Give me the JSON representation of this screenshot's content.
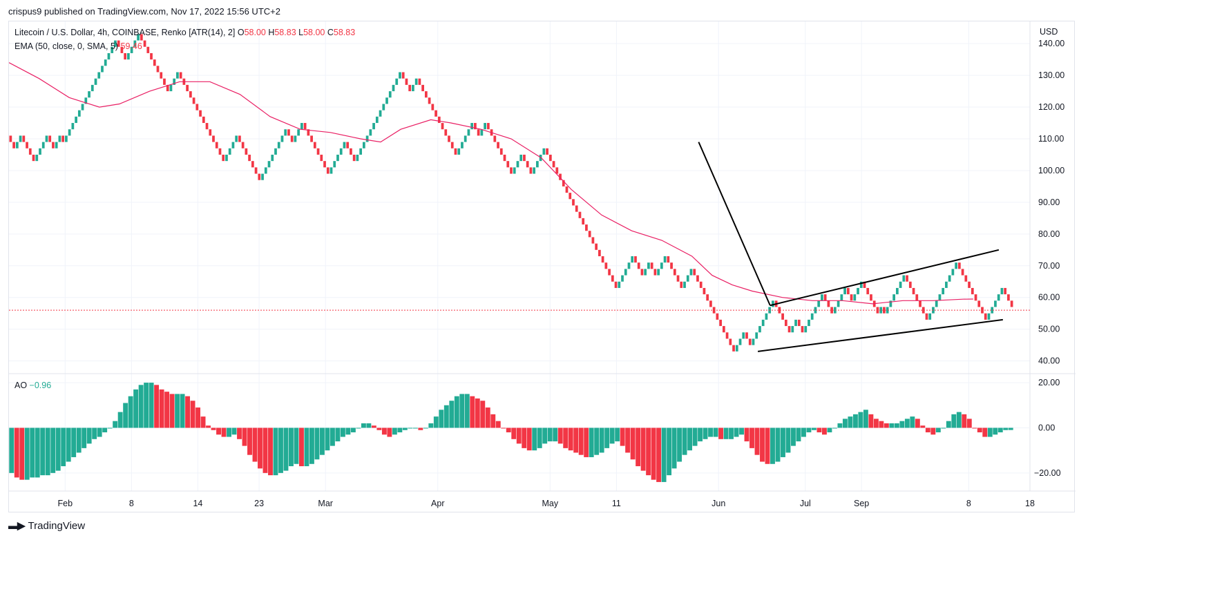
{
  "header": {
    "attribution": "crispus9 published on TradingView.com, Nov 17, 2022 15:56 UTC+2"
  },
  "legend": {
    "symbol": "Litecoin / U.S. Dollar, 4h, COINBASE, Renko [ATR(14), 2]",
    "o_label": "O",
    "o_value": "58.00",
    "h_label": "H",
    "h_value": "58.83",
    "l_label": "L",
    "l_value": "58.00",
    "c_label": "C",
    "c_value": "58.83",
    "ema_label": "EMA (50, close, 0, SMA, 5)",
    "ema_value": "59.46",
    "ao_label": "AO",
    "ao_value": "−0.96"
  },
  "footer": {
    "brand": "TradingView",
    "icon": "tradingview-logo-icon"
  },
  "colors": {
    "up": "#22ab94",
    "down": "#f23645",
    "ema": "#e91e63",
    "grid": "#f0f3fa",
    "trendline": "#000000"
  },
  "chart_data": [
    {
      "type": "renko",
      "price_axis_label": "USD",
      "y_ticks": [
        "140.00",
        "130.00",
        "120.00",
        "110.00",
        "100.00",
        "90.00",
        "80.00",
        "70.00",
        "60.00",
        "50.00",
        "40.00"
      ],
      "ylim": [
        36,
        147
      ],
      "x_ticks": [
        "Feb",
        "8",
        "14",
        "23",
        "Mar",
        "Apr",
        "May",
        "11",
        "Jun",
        "Jul",
        "Sep",
        "8",
        "18"
      ],
      "last_price_line": 56.0,
      "renko_path": [
        111,
        109,
        107,
        109,
        111,
        109,
        107,
        105,
        103,
        105,
        107,
        109,
        111,
        109,
        107,
        109,
        111,
        109,
        111,
        113,
        115,
        117,
        119,
        121,
        123,
        125,
        127,
        129,
        131,
        133,
        135,
        137,
        139,
        141,
        139,
        137,
        135,
        137,
        139,
        141,
        143,
        141,
        139,
        137,
        135,
        133,
        131,
        129,
        127,
        125,
        127,
        129,
        131,
        129,
        127,
        125,
        123,
        121,
        119,
        117,
        115,
        113,
        111,
        109,
        107,
        105,
        103,
        105,
        107,
        109,
        111,
        109,
        107,
        105,
        103,
        101,
        99,
        97,
        99,
        101,
        103,
        105,
        107,
        109,
        111,
        113,
        111,
        109,
        111,
        113,
        115,
        113,
        111,
        109,
        107,
        105,
        103,
        101,
        99,
        101,
        103,
        105,
        107,
        109,
        107,
        105,
        103,
        105,
        107,
        109,
        111,
        113,
        115,
        117,
        119,
        121,
        123,
        125,
        127,
        129,
        131,
        129,
        127,
        125,
        127,
        129,
        127,
        125,
        123,
        121,
        119,
        117,
        115,
        113,
        111,
        109,
        107,
        105,
        107,
        109,
        111,
        113,
        115,
        113,
        111,
        113,
        115,
        113,
        111,
        109,
        107,
        105,
        103,
        101,
        99,
        101,
        103,
        105,
        103,
        101,
        99,
        101,
        103,
        105,
        107,
        105,
        103,
        101,
        99,
        97,
        95,
        93,
        91,
        89,
        87,
        85,
        83,
        81,
        79,
        77,
        75,
        73,
        71,
        69,
        67,
        65,
        63,
        65,
        67,
        69,
        71,
        73,
        71,
        69,
        67,
        69,
        71,
        69,
        67,
        69,
        71,
        73,
        71,
        69,
        67,
        65,
        63,
        65,
        67,
        69,
        67,
        65,
        63,
        61,
        59,
        57,
        55,
        53,
        51,
        49,
        47,
        45,
        43,
        45,
        47,
        49,
        47,
        45,
        47,
        49,
        51,
        53,
        55,
        57,
        59,
        57,
        55,
        53,
        51,
        49,
        51,
        53,
        51,
        49,
        51,
        53,
        55,
        57,
        59,
        61,
        59,
        57,
        55,
        57,
        59,
        61,
        63,
        61,
        59,
        61,
        63,
        65,
        63,
        61,
        59,
        57,
        55,
        57,
        55,
        57,
        59,
        61,
        63,
        65,
        67,
        65,
        63,
        61,
        59,
        57,
        55,
        53,
        55,
        57,
        59,
        61,
        63,
        65,
        67,
        69,
        71,
        69,
        67,
        65,
        63,
        61,
        59,
        57,
        55,
        53,
        55,
        57,
        59,
        61,
        63,
        61,
        59,
        57
      ],
      "ema_points": [
        [
          0,
          134
        ],
        [
          0.03,
          129
        ],
        [
          0.06,
          123
        ],
        [
          0.09,
          120
        ],
        [
          0.11,
          121
        ],
        [
          0.14,
          125
        ],
        [
          0.17,
          128
        ],
        [
          0.2,
          128
        ],
        [
          0.23,
          124
        ],
        [
          0.26,
          117
        ],
        [
          0.29,
          113
        ],
        [
          0.32,
          112
        ],
        [
          0.35,
          110
        ],
        [
          0.37,
          109
        ],
        [
          0.39,
          113
        ],
        [
          0.42,
          116
        ],
        [
          0.44,
          115
        ],
        [
          0.47,
          113
        ],
        [
          0.5,
          110
        ],
        [
          0.53,
          104
        ],
        [
          0.56,
          94
        ],
        [
          0.59,
          86
        ],
        [
          0.62,
          81
        ],
        [
          0.65,
          78
        ],
        [
          0.68,
          73
        ],
        [
          0.7,
          67
        ],
        [
          0.72,
          64
        ],
        [
          0.74,
          62
        ],
        [
          0.77,
          60
        ],
        [
          0.8,
          59
        ],
        [
          0.83,
          59
        ],
        [
          0.86,
          58
        ],
        [
          0.89,
          59
        ],
        [
          0.92,
          59
        ],
        [
          0.95,
          59.46
        ],
        [
          0.96,
          59.5
        ]
      ],
      "trendlines": [
        {
          "from": [
            0.6755,
            109
          ],
          "to": [
            0.7455,
            57.5
          ]
        },
        {
          "from": [
            0.7455,
            57.5
          ],
          "to": [
            0.9695,
            75
          ]
        },
        {
          "from": [
            0.7335,
            43
          ],
          "to": [
            0.9735,
            53
          ]
        }
      ]
    },
    {
      "type": "histogram",
      "name": "AO",
      "y_ticks": [
        "20.00",
        "0.00",
        "−20.00"
      ],
      "ylim": [
        -28,
        24
      ],
      "values": [
        -20,
        -22,
        -23,
        -23,
        -22,
        -22,
        -21,
        -21,
        -20,
        -19,
        -17,
        -15,
        -13,
        -11,
        -9,
        -7,
        -5,
        -4,
        -2,
        0,
        3,
        7,
        11,
        14,
        17,
        19,
        20,
        20,
        19,
        17,
        16,
        15,
        15,
        15,
        14,
        12,
        9,
        5,
        1,
        -1,
        -3,
        -4,
        -4,
        -3,
        -5,
        -8,
        -12,
        -15,
        -18,
        -20,
        -21,
        -21,
        -20,
        -19,
        -17,
        -16,
        -17,
        -17,
        -16,
        -14,
        -12,
        -10,
        -8,
        -6,
        -4,
        -3,
        -2,
        0,
        2,
        2,
        1,
        -1,
        -3,
        -4,
        -3,
        -2,
        -1,
        0,
        0,
        -1,
        0,
        2,
        5,
        8,
        10,
        12,
        14,
        15,
        15,
        14,
        13,
        12,
        9,
        6,
        3,
        0,
        -2,
        -5,
        -7,
        -9,
        -10,
        -10,
        -9,
        -7,
        -6,
        -6,
        -7,
        -9,
        -10,
        -11,
        -12,
        -13,
        -13,
        -12,
        -11,
        -9,
        -7,
        -6,
        -8,
        -11,
        -14,
        -17,
        -19,
        -21,
        -23,
        -24,
        -24,
        -21,
        -18,
        -15,
        -12,
        -10,
        -8,
        -6,
        -5,
        -4,
        -4,
        -5,
        -5,
        -5,
        -4,
        -3,
        -6,
        -9,
        -12,
        -15,
        -16,
        -16,
        -15,
        -13,
        -11,
        -8,
        -6,
        -4,
        -2,
        -1,
        -2,
        -3,
        -2,
        0,
        2,
        4,
        5,
        6,
        7,
        8,
        6,
        4,
        3,
        2,
        2,
        2,
        3,
        4,
        5,
        4,
        1,
        -2,
        -3,
        -2,
        0,
        3,
        6,
        7,
        6,
        4,
        0,
        -2,
        -4,
        -4,
        -3,
        -2,
        -1,
        -0.96
      ]
    }
  ]
}
